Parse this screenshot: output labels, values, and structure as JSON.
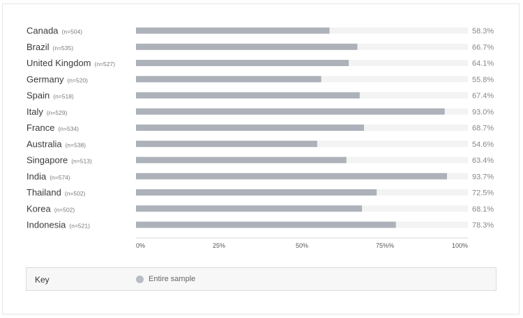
{
  "chart_data": {
    "type": "bar",
    "orientation": "horizontal",
    "categories": [
      "Canada",
      "Brazil",
      "United Kingdom",
      "Germany",
      "Spain",
      "Italy",
      "France",
      "Australia",
      "Singapore",
      "India",
      "Thailand",
      "Korea",
      "Indonesia"
    ],
    "sample_sizes": [
      "(n=504)",
      "(n=535)",
      "(n=527)",
      "(n=520)",
      "(n=518)",
      "(n=529)",
      "(n=534)",
      "(n=538)",
      "(n=513)",
      "(n=574)",
      "(n=502)",
      "(n=502)",
      "(n=521)"
    ],
    "value_labels": [
      "58.3%",
      "66.7%",
      "64.1%",
      "55.8%",
      "67.4%",
      "93.0%",
      "68.7%",
      "54.6%",
      "63.4%",
      "93.7%",
      "72.5%",
      "68.1%",
      "78.3%"
    ],
    "series": [
      {
        "name": "Entire sample",
        "values": [
          58.3,
          66.7,
          64.1,
          55.8,
          67.4,
          93.0,
          68.7,
          54.6,
          63.4,
          93.7,
          72.5,
          68.1,
          78.3
        ]
      }
    ],
    "xlim": [
      0,
      100
    ],
    "x_ticks": [
      "0%",
      "25%",
      "50%",
      "75%%",
      "100%"
    ],
    "legend_position": "bottom",
    "colors": {
      "bar": "#adb1b9",
      "track": "#f3f3f3",
      "axis": "#d8d8d8"
    }
  },
  "key": {
    "title": "Key",
    "items": [
      {
        "label": "Entire sample",
        "color": "#b8bcc3"
      }
    ]
  }
}
